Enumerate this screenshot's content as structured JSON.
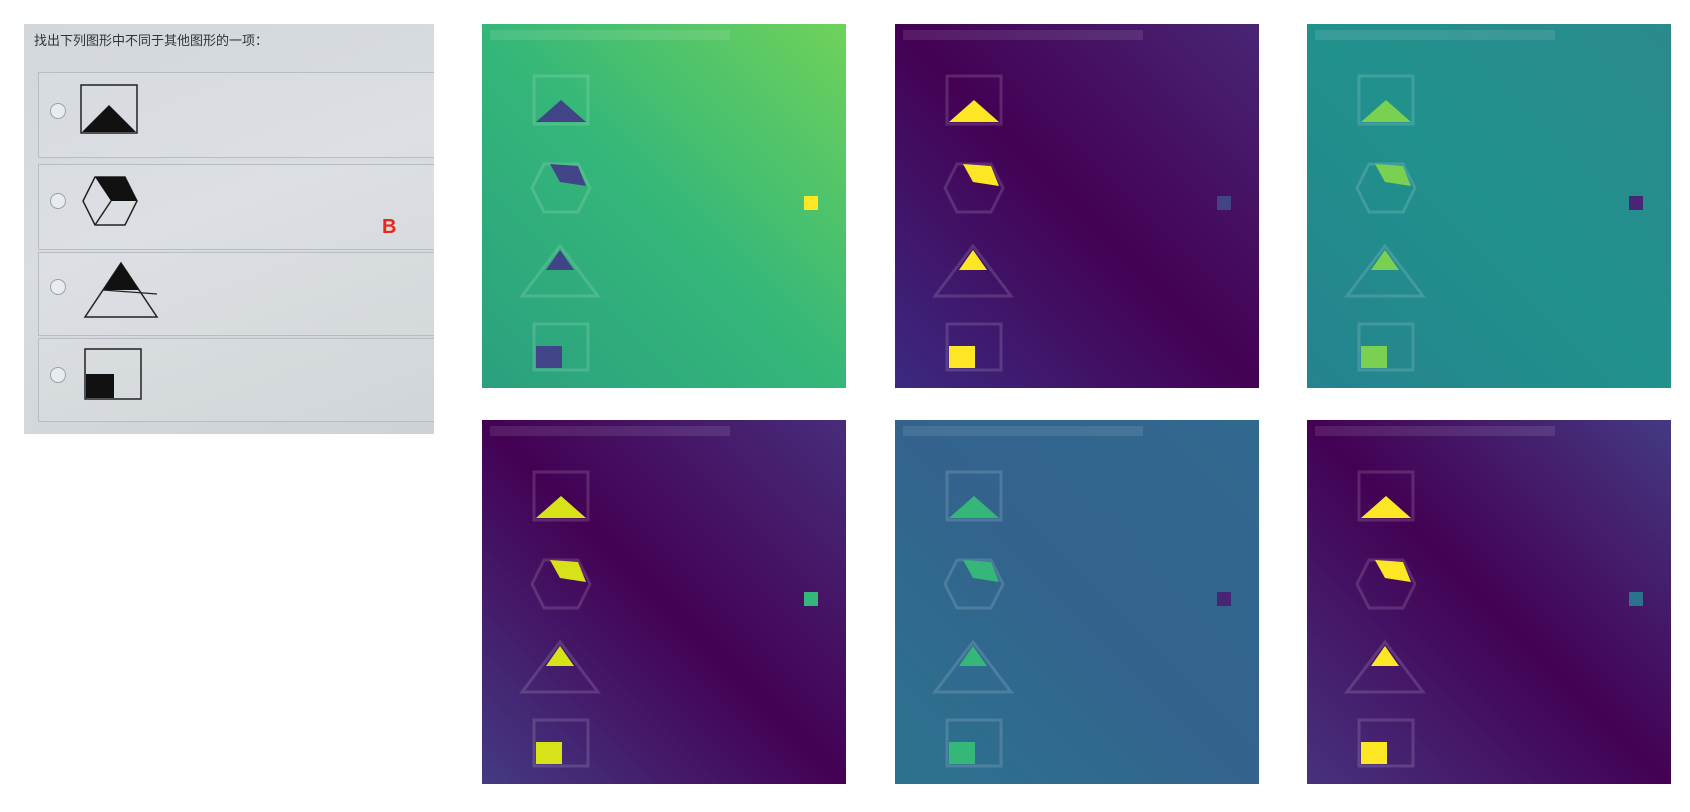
{
  "question": {
    "prompt": "找出下列图形中不同于其他图形的一项：",
    "options": [
      "square-with-triangle",
      "hexagon-cube",
      "triangle-half-filled",
      "square-with-corner-square"
    ]
  },
  "answer_label": "B",
  "heatmap_panels": [
    {
      "name": "map-1",
      "bg": [
        "#6fd25a",
        "#2aa07f",
        "#35b779"
      ],
      "fill": "#414487",
      "dot": "#fde725"
    },
    {
      "name": "map-2",
      "bg": [
        "#482575",
        "#3b2a80",
        "#440154"
      ],
      "fill": "#fde725",
      "dot": "#414487"
    },
    {
      "name": "map-3",
      "bg": [
        "#2a8a8c",
        "#25838e",
        "#21918c"
      ],
      "fill": "#7ad151",
      "dot": "#482575"
    },
    {
      "name": "map-4",
      "bg": [
        "#472d7b",
        "#443a83",
        "#440154"
      ],
      "fill": "#d8e219",
      "dot": "#35b779"
    },
    {
      "name": "map-5",
      "bg": [
        "#31688e",
        "#2c728e",
        "#33638d"
      ],
      "fill": "#35b779",
      "dot": "#482575"
    },
    {
      "name": "map-6",
      "bg": [
        "#443983",
        "#46327e",
        "#440154"
      ],
      "fill": "#fde725",
      "dot": "#2c728e"
    }
  ]
}
